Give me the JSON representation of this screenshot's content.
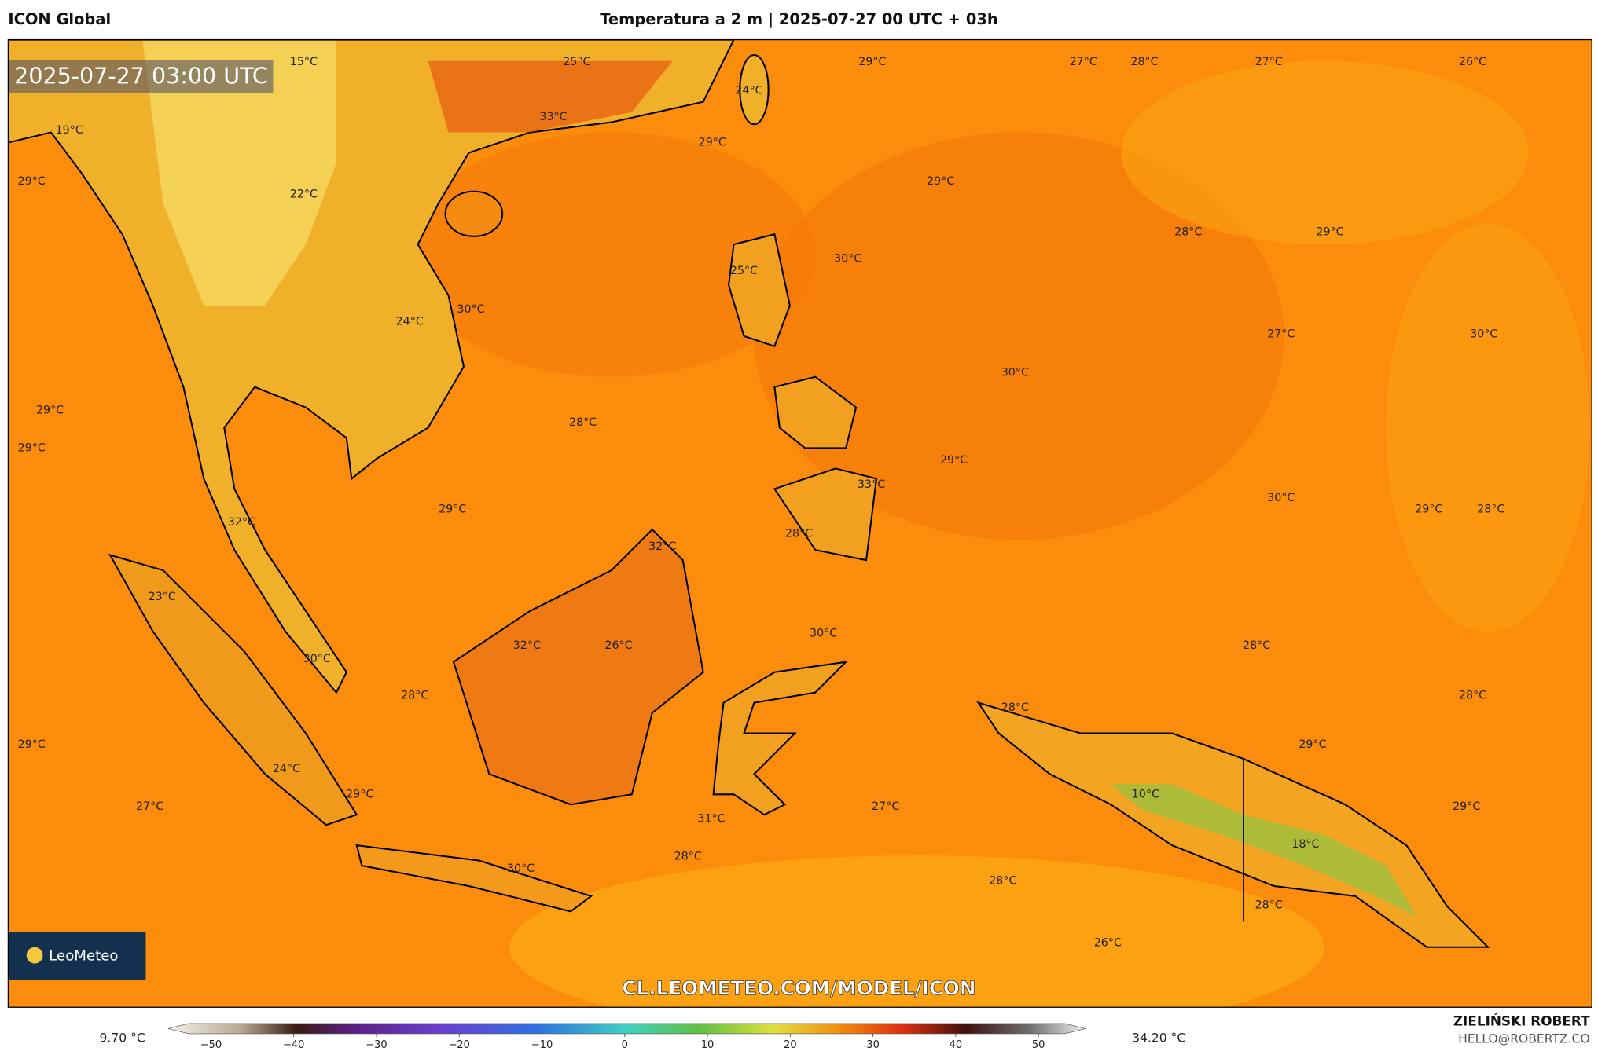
{
  "header": {
    "model": "ICON Global",
    "title": "Temperatura a 2 m | 2025-07-27 00 UTC + 03h"
  },
  "map": {
    "timestamp": "2025-07-27 03:00 UTC",
    "temperature_labels": [
      "15°C",
      "25°C",
      "29°C",
      "27°C",
      "28°C",
      "27°C",
      "26°C",
      "24°C",
      "33°C",
      "19°C",
      "29°C",
      "29°C",
      "22°C",
      "29°C",
      "28°C",
      "29°C",
      "30°C",
      "25°C",
      "30°C",
      "24°C",
      "27°C",
      "30°C",
      "30°C",
      "29°C",
      "28°C",
      "29°C",
      "29°C",
      "33°C",
      "30°C",
      "29°C",
      "28°C",
      "29°C",
      "32°C",
      "28°C",
      "32°C",
      "23°C",
      "30°C",
      "26°C",
      "32°C",
      "28°C",
      "30°C",
      "28°C",
      "28°C",
      "28°C",
      "29°C",
      "29°C",
      "24°C",
      "29°C",
      "10°C",
      "27°C",
      "27°C",
      "29°C",
      "31°C",
      "18°C",
      "28°C",
      "30°C",
      "28°C",
      "28°C",
      "26°C"
    ],
    "watermark": "CL.LEOMETEO.COM/MODEL/ICON",
    "logo": "LeoMeteo"
  },
  "colorbar": {
    "min_label": "9.70 °C",
    "max_label": "34.20 °C",
    "ticks": [
      "−50",
      "−40",
      "−30",
      "−20",
      "−10",
      "0",
      "10",
      "20",
      "30",
      "40",
      "50"
    ]
  },
  "footer": {
    "author": "ZIELIŃSKI ROBERT",
    "contact": "HELLO@ROBERTZ.CO"
  }
}
